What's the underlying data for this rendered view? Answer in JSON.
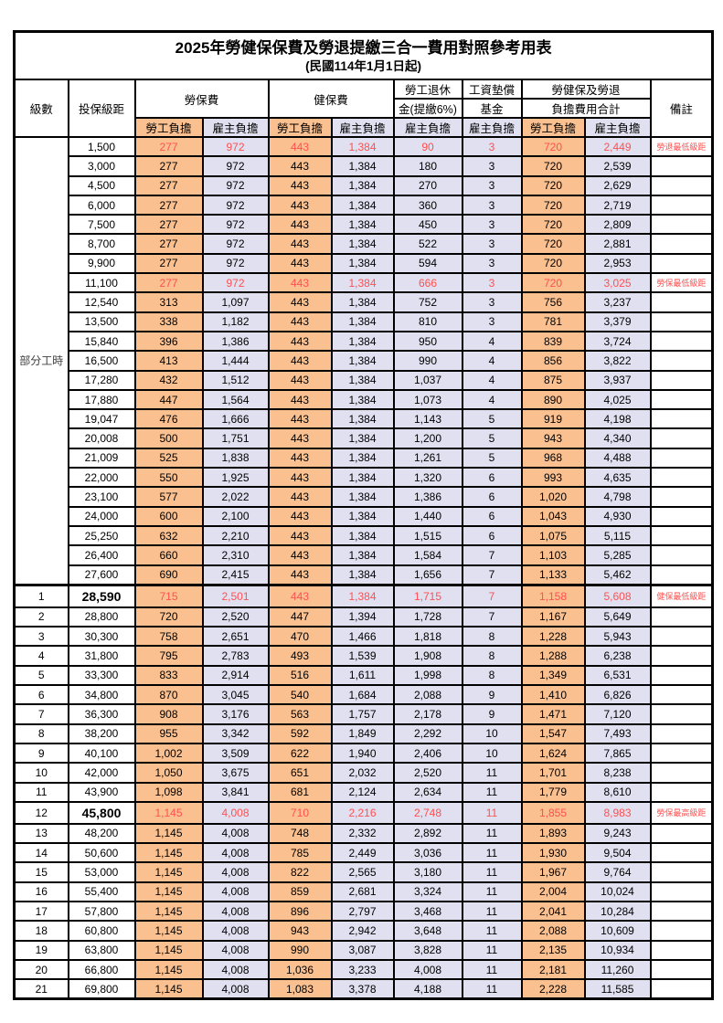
{
  "title": "2025年勞健保保費及勞退提繳三合一費用對照參考用表",
  "subtitle": "(民國114年1月1日起)",
  "colors": {
    "employee_bg": "#FAC090",
    "employer_bg": "#E0E0F0",
    "highlight_red": "#FF5050",
    "border": "#000000"
  },
  "header": {
    "level": "級數",
    "bracket": "投保級距",
    "labor_insurance": "勞保費",
    "health_insurance": "健保費",
    "pension_line1": "勞工退休",
    "pension_line2": "金(提繳6%)",
    "wage_fund_line1": "工資墊償",
    "wage_fund_line2": "基金",
    "total_line1": "勞健保及勞退",
    "total_line2": "負擔費用合計",
    "remark": "備註",
    "employee": "勞工負擔",
    "employer": "雇主負擔"
  },
  "part_time_label": "部分工時",
  "rows": [
    {
      "part_time_span": 23,
      "bracket": "1,500",
      "values": [
        "277",
        "972",
        "443",
        "1,384",
        "90",
        "3",
        "720",
        "2,449"
      ],
      "remark": "勞退最低級距",
      "red": true
    },
    {
      "bracket": "3,000",
      "values": [
        "277",
        "972",
        "443",
        "1,384",
        "180",
        "3",
        "720",
        "2,539"
      ]
    },
    {
      "bracket": "4,500",
      "values": [
        "277",
        "972",
        "443",
        "1,384",
        "270",
        "3",
        "720",
        "2,629"
      ]
    },
    {
      "bracket": "6,000",
      "values": [
        "277",
        "972",
        "443",
        "1,384",
        "360",
        "3",
        "720",
        "2,719"
      ]
    },
    {
      "bracket": "7,500",
      "values": [
        "277",
        "972",
        "443",
        "1,384",
        "450",
        "3",
        "720",
        "2,809"
      ]
    },
    {
      "bracket": "8,700",
      "values": [
        "277",
        "972",
        "443",
        "1,384",
        "522",
        "3",
        "720",
        "2,881"
      ]
    },
    {
      "bracket": "9,900",
      "values": [
        "277",
        "972",
        "443",
        "1,384",
        "594",
        "3",
        "720",
        "2,953"
      ]
    },
    {
      "bracket": "11,100",
      "values": [
        "277",
        "972",
        "443",
        "1,384",
        "666",
        "3",
        "720",
        "3,025"
      ],
      "remark": "勞保最低級距",
      "red": true
    },
    {
      "bracket": "12,540",
      "values": [
        "313",
        "1,097",
        "443",
        "1,384",
        "752",
        "3",
        "756",
        "3,237"
      ]
    },
    {
      "bracket": "13,500",
      "values": [
        "338",
        "1,182",
        "443",
        "1,384",
        "810",
        "3",
        "781",
        "3,379"
      ]
    },
    {
      "bracket": "15,840",
      "values": [
        "396",
        "1,386",
        "443",
        "1,384",
        "950",
        "4",
        "839",
        "3,724"
      ]
    },
    {
      "bracket": "16,500",
      "values": [
        "413",
        "1,444",
        "443",
        "1,384",
        "990",
        "4",
        "856",
        "3,822"
      ]
    },
    {
      "bracket": "17,280",
      "values": [
        "432",
        "1,512",
        "443",
        "1,384",
        "1,037",
        "4",
        "875",
        "3,937"
      ]
    },
    {
      "bracket": "17,880",
      "values": [
        "447",
        "1,564",
        "443",
        "1,384",
        "1,073",
        "4",
        "890",
        "4,025"
      ]
    },
    {
      "bracket": "19,047",
      "values": [
        "476",
        "1,666",
        "443",
        "1,384",
        "1,143",
        "5",
        "919",
        "4,198"
      ]
    },
    {
      "bracket": "20,008",
      "values": [
        "500",
        "1,751",
        "443",
        "1,384",
        "1,200",
        "5",
        "943",
        "4,340"
      ]
    },
    {
      "bracket": "21,009",
      "values": [
        "525",
        "1,838",
        "443",
        "1,384",
        "1,261",
        "5",
        "968",
        "4,488"
      ]
    },
    {
      "bracket": "22,000",
      "values": [
        "550",
        "1,925",
        "443",
        "1,384",
        "1,320",
        "6",
        "993",
        "4,635"
      ]
    },
    {
      "bracket": "23,100",
      "values": [
        "577",
        "2,022",
        "443",
        "1,384",
        "1,386",
        "6",
        "1,020",
        "4,798"
      ]
    },
    {
      "bracket": "24,000",
      "values": [
        "600",
        "2,100",
        "443",
        "1,384",
        "1,440",
        "6",
        "1,043",
        "4,930"
      ]
    },
    {
      "bracket": "25,250",
      "values": [
        "632",
        "2,210",
        "443",
        "1,384",
        "1,515",
        "6",
        "1,075",
        "5,115"
      ]
    },
    {
      "bracket": "26,400",
      "values": [
        "660",
        "2,310",
        "443",
        "1,384",
        "1,584",
        "7",
        "1,103",
        "5,285"
      ]
    },
    {
      "bracket": "27,600",
      "values": [
        "690",
        "2,415",
        "443",
        "1,384",
        "1,656",
        "7",
        "1,133",
        "5,462"
      ]
    },
    {
      "level": "1",
      "bracket": "28,590",
      "values": [
        "715",
        "2,501",
        "443",
        "1,384",
        "1,715",
        "7",
        "1,158",
        "5,608"
      ],
      "remark": "健保最低級距",
      "red": true,
      "bold": true,
      "sep": true
    },
    {
      "level": "2",
      "bracket": "28,800",
      "values": [
        "720",
        "2,520",
        "447",
        "1,394",
        "1,728",
        "7",
        "1,167",
        "5,649"
      ]
    },
    {
      "level": "3",
      "bracket": "30,300",
      "values": [
        "758",
        "2,651",
        "470",
        "1,466",
        "1,818",
        "8",
        "1,228",
        "5,943"
      ]
    },
    {
      "level": "4",
      "bracket": "31,800",
      "values": [
        "795",
        "2,783",
        "493",
        "1,539",
        "1,908",
        "8",
        "1,288",
        "6,238"
      ]
    },
    {
      "level": "5",
      "bracket": "33,300",
      "values": [
        "833",
        "2,914",
        "516",
        "1,611",
        "1,998",
        "8",
        "1,349",
        "6,531"
      ]
    },
    {
      "level": "6",
      "bracket": "34,800",
      "values": [
        "870",
        "3,045",
        "540",
        "1,684",
        "2,088",
        "9",
        "1,410",
        "6,826"
      ]
    },
    {
      "level": "7",
      "bracket": "36,300",
      "values": [
        "908",
        "3,176",
        "563",
        "1,757",
        "2,178",
        "9",
        "1,471",
        "7,120"
      ]
    },
    {
      "level": "8",
      "bracket": "38,200",
      "values": [
        "955",
        "3,342",
        "592",
        "1,849",
        "2,292",
        "10",
        "1,547",
        "7,493"
      ]
    },
    {
      "level": "9",
      "bracket": "40,100",
      "values": [
        "1,002",
        "3,509",
        "622",
        "1,940",
        "2,406",
        "10",
        "1,624",
        "7,865"
      ]
    },
    {
      "level": "10",
      "bracket": "42,000",
      "values": [
        "1,050",
        "3,675",
        "651",
        "2,032",
        "2,520",
        "11",
        "1,701",
        "8,238"
      ]
    },
    {
      "level": "11",
      "bracket": "43,900",
      "values": [
        "1,098",
        "3,841",
        "681",
        "2,124",
        "2,634",
        "11",
        "1,779",
        "8,610"
      ]
    },
    {
      "level": "12",
      "bracket": "45,800",
      "values": [
        "1,145",
        "4,008",
        "710",
        "2,216",
        "2,748",
        "11",
        "1,855",
        "8,983"
      ],
      "remark": "勞保最高級距",
      "red": true,
      "bold": true
    },
    {
      "level": "13",
      "bracket": "48,200",
      "values": [
        "1,145",
        "4,008",
        "748",
        "2,332",
        "2,892",
        "11",
        "1,893",
        "9,243"
      ]
    },
    {
      "level": "14",
      "bracket": "50,600",
      "values": [
        "1,145",
        "4,008",
        "785",
        "2,449",
        "3,036",
        "11",
        "1,930",
        "9,504"
      ]
    },
    {
      "level": "15",
      "bracket": "53,000",
      "values": [
        "1,145",
        "4,008",
        "822",
        "2,565",
        "3,180",
        "11",
        "1,967",
        "9,764"
      ]
    },
    {
      "level": "16",
      "bracket": "55,400",
      "values": [
        "1,145",
        "4,008",
        "859",
        "2,681",
        "3,324",
        "11",
        "2,004",
        "10,024"
      ]
    },
    {
      "level": "17",
      "bracket": "57,800",
      "values": [
        "1,145",
        "4,008",
        "896",
        "2,797",
        "3,468",
        "11",
        "2,041",
        "10,284"
      ]
    },
    {
      "level": "18",
      "bracket": "60,800",
      "values": [
        "1,145",
        "4,008",
        "943",
        "2,942",
        "3,648",
        "11",
        "2,088",
        "10,609"
      ]
    },
    {
      "level": "19",
      "bracket": "63,800",
      "values": [
        "1,145",
        "4,008",
        "990",
        "3,087",
        "3,828",
        "11",
        "2,135",
        "10,934"
      ]
    },
    {
      "level": "20",
      "bracket": "66,800",
      "values": [
        "1,145",
        "4,008",
        "1,036",
        "3,233",
        "4,008",
        "11",
        "2,181",
        "11,260"
      ]
    },
    {
      "level": "21",
      "bracket": "69,800",
      "values": [
        "1,145",
        "4,008",
        "1,083",
        "3,378",
        "4,188",
        "11",
        "2,228",
        "11,585"
      ]
    }
  ]
}
